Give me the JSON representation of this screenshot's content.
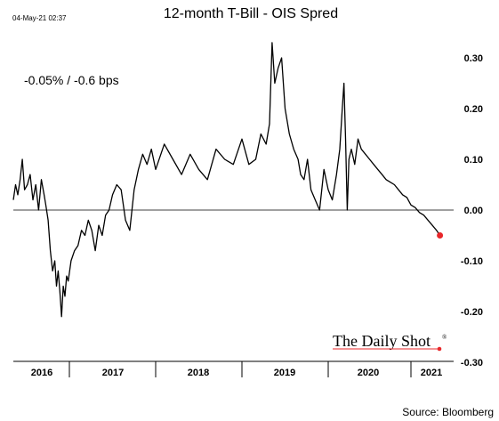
{
  "timestamp": "04-May-21 02:37",
  "annotation": "-0.05%  /  -0.6 bps",
  "brand": {
    "name": "The Daily Shot",
    "mark": "®",
    "accent_color": "#e8272a"
  },
  "source": "Source: Bloomberg",
  "chart_data": {
    "type": "line",
    "title": "12-month T-Bill - OIS Spred",
    "xlabel": "",
    "ylabel": "",
    "x_ticks": [
      "2016",
      "2017",
      "2018",
      "2019",
      "2020",
      "2021"
    ],
    "y_ticks": [
      "0.30",
      "0.20",
      "0.10",
      "0.00",
      "-0.10",
      "-0.20",
      "-0.30"
    ],
    "ylim": [
      -0.3,
      0.33
    ],
    "xlim": [
      2016.0,
      2021.35
    ],
    "grid": false,
    "zero_line": true,
    "y_axis_side": "right",
    "line_color": "#000000",
    "last_point_color": "#e8272a",
    "series": [
      {
        "x": [
          2016.0,
          2016.04,
          2016.08,
          2016.12,
          2016.16,
          2016.2,
          2016.25,
          2016.3,
          2016.35,
          2016.4,
          2016.45,
          2016.5,
          2016.55,
          2016.58,
          2016.62,
          2016.66,
          2016.7,
          2016.74,
          2016.77,
          2016.8,
          2016.83,
          2016.86,
          2016.89,
          2016.92,
          2016.95,
          2016.98,
          2017.02,
          2017.06,
          2017.1,
          2017.14,
          2017.18,
          2017.22,
          2017.26,
          2017.3,
          2017.34,
          2017.38,
          2017.42,
          2017.46,
          2017.5,
          2017.55,
          2017.6,
          2017.65,
          2017.7,
          2017.75,
          2017.8,
          2017.85,
          2017.9,
          2017.95,
          2018.0,
          2018.1,
          2018.2,
          2018.3,
          2018.4,
          2018.5,
          2018.6,
          2018.7,
          2018.8,
          2018.9,
          2019.0,
          2019.08,
          2019.16,
          2019.22,
          2019.28,
          2019.32,
          2019.35,
          2019.38,
          2019.42,
          2019.46,
          2019.5,
          2019.55,
          2019.6,
          2019.65,
          2019.68,
          2019.72,
          2019.76,
          2019.8,
          2019.85,
          2019.9,
          2019.95,
          2020.0,
          2020.05,
          2020.1,
          2020.14,
          2020.17,
          2020.19,
          2020.21,
          2020.23,
          2020.25,
          2020.28,
          2020.32,
          2020.36,
          2020.4,
          2020.45,
          2020.5,
          2020.55,
          2020.6,
          2020.65,
          2020.7,
          2020.75,
          2020.8,
          2020.85,
          2020.9,
          2020.95,
          2021.0,
          2021.05,
          2021.1,
          2021.15,
          2021.2,
          2021.25,
          2021.3,
          2021.34
        ],
        "values": [
          0.02,
          0.05,
          0.03,
          0.06,
          0.1,
          0.04,
          0.05,
          0.07,
          0.02,
          0.05,
          0.0,
          0.06,
          0.03,
          0.01,
          -0.02,
          -0.08,
          -0.12,
          -0.1,
          -0.15,
          -0.12,
          -0.16,
          -0.21,
          -0.15,
          -0.17,
          -0.13,
          -0.14,
          -0.1,
          -0.08,
          -0.07,
          -0.04,
          -0.05,
          -0.02,
          -0.04,
          -0.08,
          -0.03,
          -0.05,
          -0.01,
          0.0,
          0.03,
          0.05,
          0.04,
          -0.02,
          -0.04,
          0.04,
          0.08,
          0.11,
          0.09,
          0.12,
          0.08,
          0.13,
          0.1,
          0.07,
          0.11,
          0.08,
          0.06,
          0.12,
          0.1,
          0.09,
          0.14,
          0.09,
          0.1,
          0.15,
          0.13,
          0.17,
          0.33,
          0.25,
          0.28,
          0.3,
          0.2,
          0.15,
          0.12,
          0.1,
          0.07,
          0.06,
          0.1,
          0.04,
          0.02,
          0.0,
          0.08,
          0.04,
          0.02,
          0.07,
          0.12,
          0.2,
          0.25,
          0.14,
          0.0,
          0.1,
          0.12,
          0.09,
          0.14,
          0.12,
          0.11,
          0.1,
          0.09,
          0.08,
          0.07,
          0.06,
          0.055,
          0.05,
          0.04,
          0.03,
          0.025,
          0.01,
          0.005,
          -0.005,
          -0.01,
          -0.02,
          -0.03,
          -0.04,
          -0.05
        ]
      }
    ]
  }
}
